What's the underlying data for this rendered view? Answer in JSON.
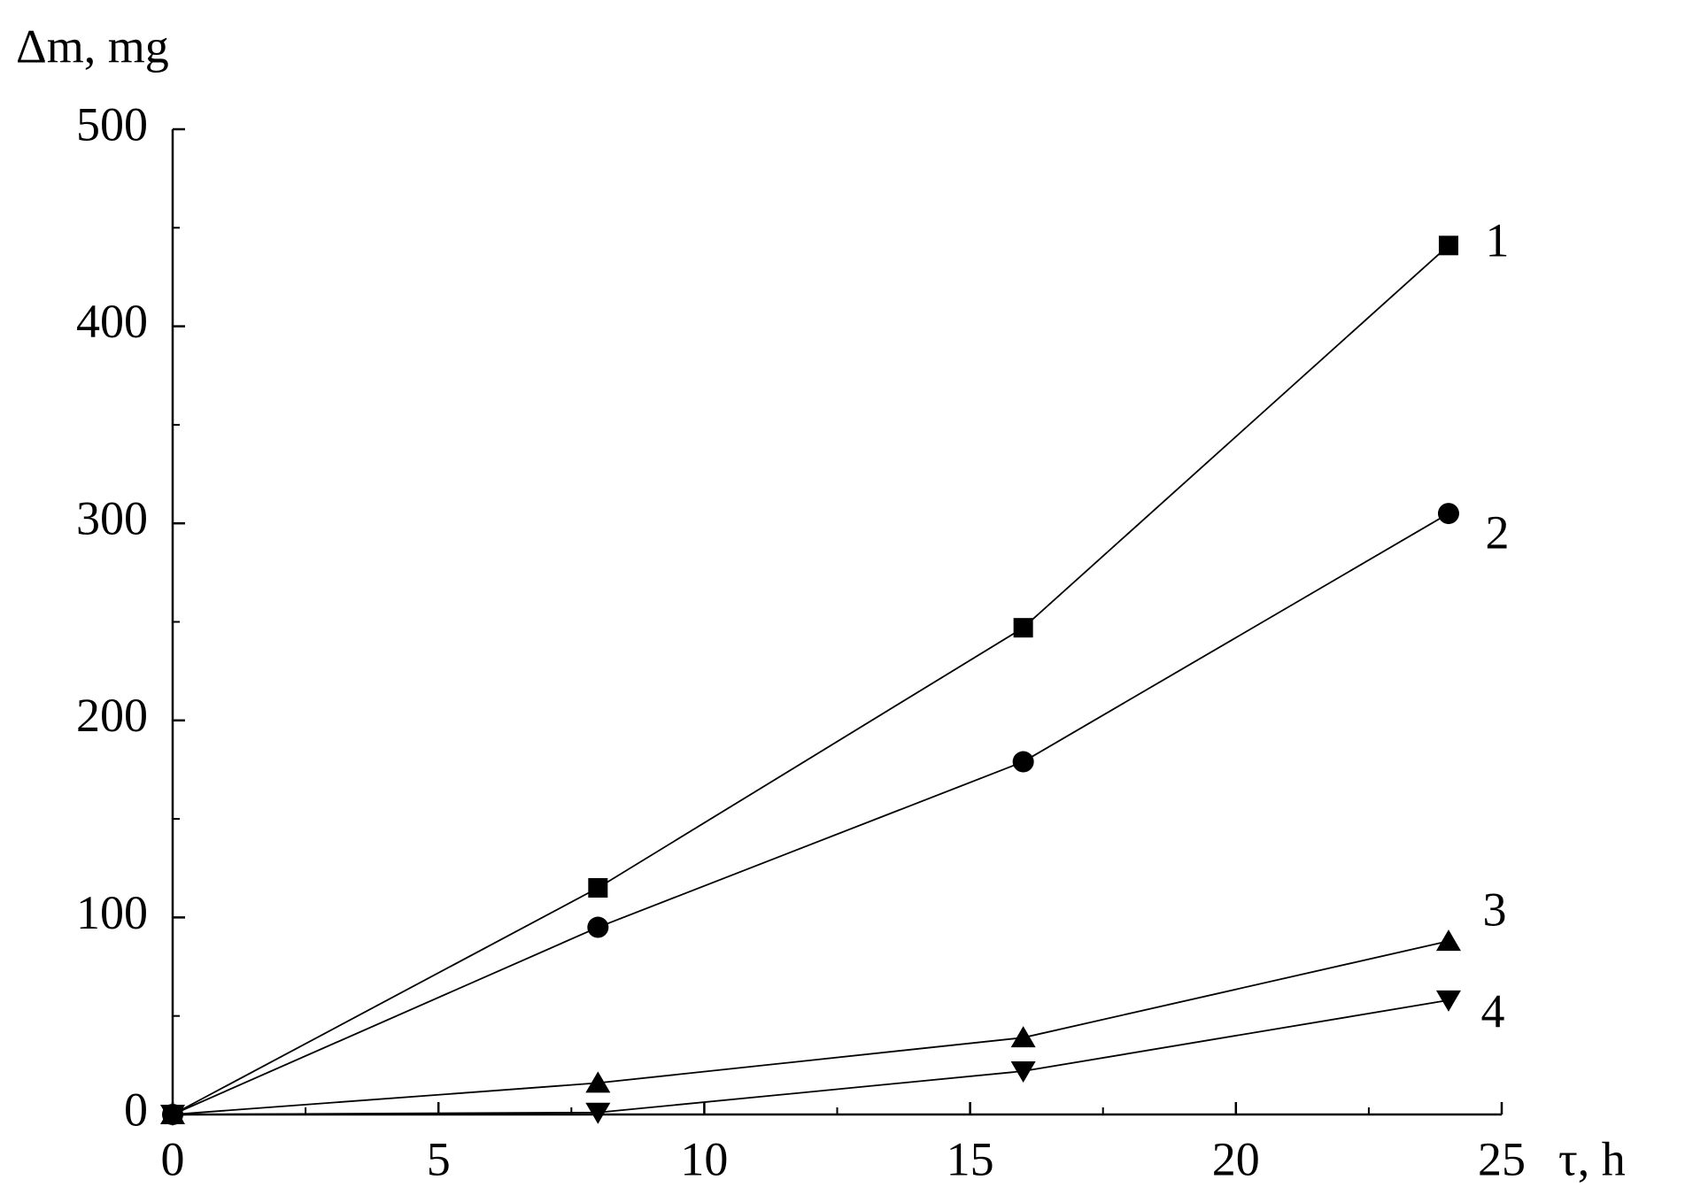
{
  "chart_data": {
    "type": "line",
    "x_label": "τ, h",
    "y_label": "Δm, mg",
    "xlim": [
      0,
      25
    ],
    "xticks": [
      0,
      5,
      10,
      15,
      20,
      25
    ],
    "xminorticks": [
      2.5,
      7.5,
      12.5,
      17.5,
      22.5
    ],
    "ylim": [
      0,
      500
    ],
    "yticks": [
      0,
      100,
      200,
      300,
      400,
      500
    ],
    "yminorticks": [
      50,
      150,
      250,
      350,
      450
    ],
    "grid": false,
    "x": [
      0,
      8,
      16,
      24
    ],
    "series": [
      {
        "name": "1",
        "color": "#000000",
        "marker": "square",
        "values": [
          0,
          115,
          247,
          441
        ]
      },
      {
        "name": "2",
        "color": "#000000",
        "marker": "circle",
        "values": [
          0,
          95,
          179,
          305
        ]
      },
      {
        "name": "3",
        "color": "#000000",
        "marker": "triangle-up",
        "values": [
          0,
          16,
          39,
          88
        ]
      },
      {
        "name": "4",
        "color": "#000000",
        "marker": "triangle-down",
        "values": [
          0,
          1,
          22,
          58
        ]
      }
    ]
  }
}
